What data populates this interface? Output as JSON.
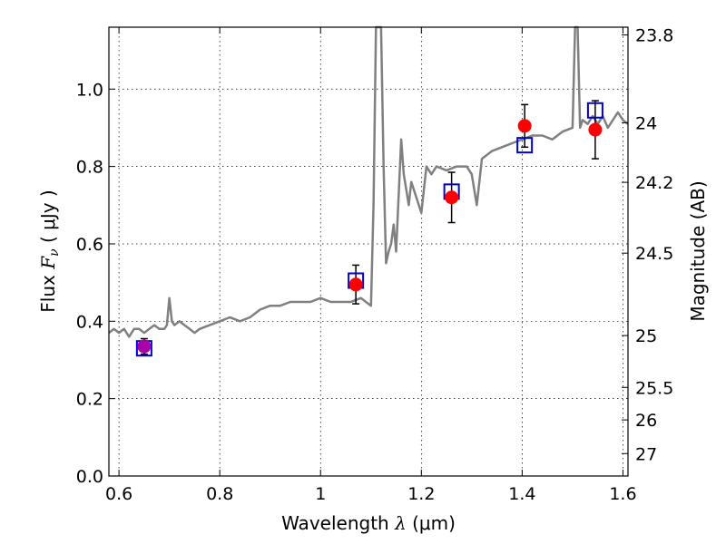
{
  "chart_data": {
    "type": "scatter",
    "xlabel_prefix": "Wavelength  ",
    "xlabel_symbol": "λ",
    "xlabel_suffix": " (μm)",
    "ylabel_prefix": "Flux  ",
    "ylabel_symbol": "F",
    "ylabel_sub": "ν",
    "ylabel_suffix": "  ( μJy )",
    "y2label": "Magnitude (AB)",
    "xlim": [
      0.58,
      1.61
    ],
    "ylim": [
      0.0,
      1.16
    ],
    "grid": true,
    "x_ticks": [
      0.6,
      0.8,
      1.0,
      1.2,
      1.4,
      1.6
    ],
    "x_tick_labels": [
      "0.6",
      "0.8",
      "1",
      "1.2",
      "1.4",
      "1.6"
    ],
    "y_ticks": [
      0.0,
      0.2,
      0.4,
      0.6,
      0.8,
      1.0
    ],
    "y_tick_labels": [
      "0.0",
      "0.2",
      "0.4",
      "0.6",
      "0.8",
      "1.0"
    ],
    "mag_ticks": [
      {
        "label": "23.8",
        "flux": 1.14
      },
      {
        "label": "24",
        "flux": 0.913
      },
      {
        "label": "24.2",
        "flux": 0.759
      },
      {
        "label": "24.5",
        "flux": 0.576
      },
      {
        "label": "25",
        "flux": 0.363
      },
      {
        "label": "25.5",
        "flux": 0.229
      },
      {
        "label": "26",
        "flux": 0.145
      },
      {
        "label": "27",
        "flux": 0.058
      }
    ],
    "colors": {
      "spectrum": "#808080",
      "model_box": "#0000cc",
      "observed": "#ff0000",
      "blend": "#aa00aa",
      "error_bar": "#000000"
    },
    "series": [
      {
        "name": "Model spectrum",
        "style": "line",
        "x": [
          0.58,
          0.59,
          0.6,
          0.61,
          0.62,
          0.63,
          0.64,
          0.65,
          0.66,
          0.67,
          0.68,
          0.69,
          0.695,
          0.7,
          0.705,
          0.71,
          0.72,
          0.73,
          0.74,
          0.75,
          0.76,
          0.78,
          0.8,
          0.82,
          0.84,
          0.86,
          0.88,
          0.9,
          0.92,
          0.94,
          0.96,
          0.98,
          1.0,
          1.02,
          1.04,
          1.06,
          1.08,
          1.09,
          1.1,
          1.105,
          1.11,
          1.115,
          1.12,
          1.125,
          1.13,
          1.135,
          1.14,
          1.145,
          1.15,
          1.16,
          1.165,
          1.17,
          1.175,
          1.18,
          1.19,
          1.2,
          1.21,
          1.22,
          1.23,
          1.25,
          1.27,
          1.29,
          1.3,
          1.31,
          1.32,
          1.34,
          1.36,
          1.38,
          1.4,
          1.42,
          1.44,
          1.46,
          1.48,
          1.5,
          1.505,
          1.51,
          1.515,
          1.52,
          1.53,
          1.54,
          1.55,
          1.56,
          1.57,
          1.58,
          1.59,
          1.6,
          1.61
        ],
        "y": [
          0.37,
          0.38,
          0.37,
          0.38,
          0.36,
          0.38,
          0.38,
          0.37,
          0.38,
          0.39,
          0.38,
          0.38,
          0.39,
          0.46,
          0.4,
          0.39,
          0.4,
          0.39,
          0.38,
          0.37,
          0.38,
          0.39,
          0.4,
          0.41,
          0.4,
          0.41,
          0.43,
          0.44,
          0.44,
          0.45,
          0.45,
          0.45,
          0.46,
          0.45,
          0.45,
          0.45,
          0.46,
          0.45,
          0.44,
          0.7,
          1.16,
          1.16,
          1.16,
          0.8,
          0.55,
          0.58,
          0.6,
          0.65,
          0.58,
          0.87,
          0.78,
          0.74,
          0.7,
          0.76,
          0.72,
          0.68,
          0.8,
          0.78,
          0.8,
          0.79,
          0.8,
          0.8,
          0.78,
          0.7,
          0.82,
          0.84,
          0.85,
          0.86,
          0.87,
          0.88,
          0.88,
          0.87,
          0.89,
          0.9,
          1.16,
          1.16,
          0.9,
          0.92,
          0.91,
          0.93,
          0.91,
          0.93,
          0.9,
          0.92,
          0.94,
          0.92,
          0.91
        ]
      },
      {
        "name": "Model band flux",
        "style": "square",
        "x": [
          0.65,
          1.07,
          1.26,
          1.405,
          1.545
        ],
        "y": [
          0.33,
          0.505,
          0.735,
          0.855,
          0.945
        ]
      },
      {
        "name": "Observed flux",
        "style": "circle",
        "x": [
          0.65,
          1.07,
          1.26,
          1.405,
          1.545
        ],
        "y": [
          0.335,
          0.495,
          0.72,
          0.905,
          0.895
        ],
        "yerr": [
          0.02,
          0.05,
          0.065,
          0.055,
          0.075
        ]
      }
    ]
  }
}
